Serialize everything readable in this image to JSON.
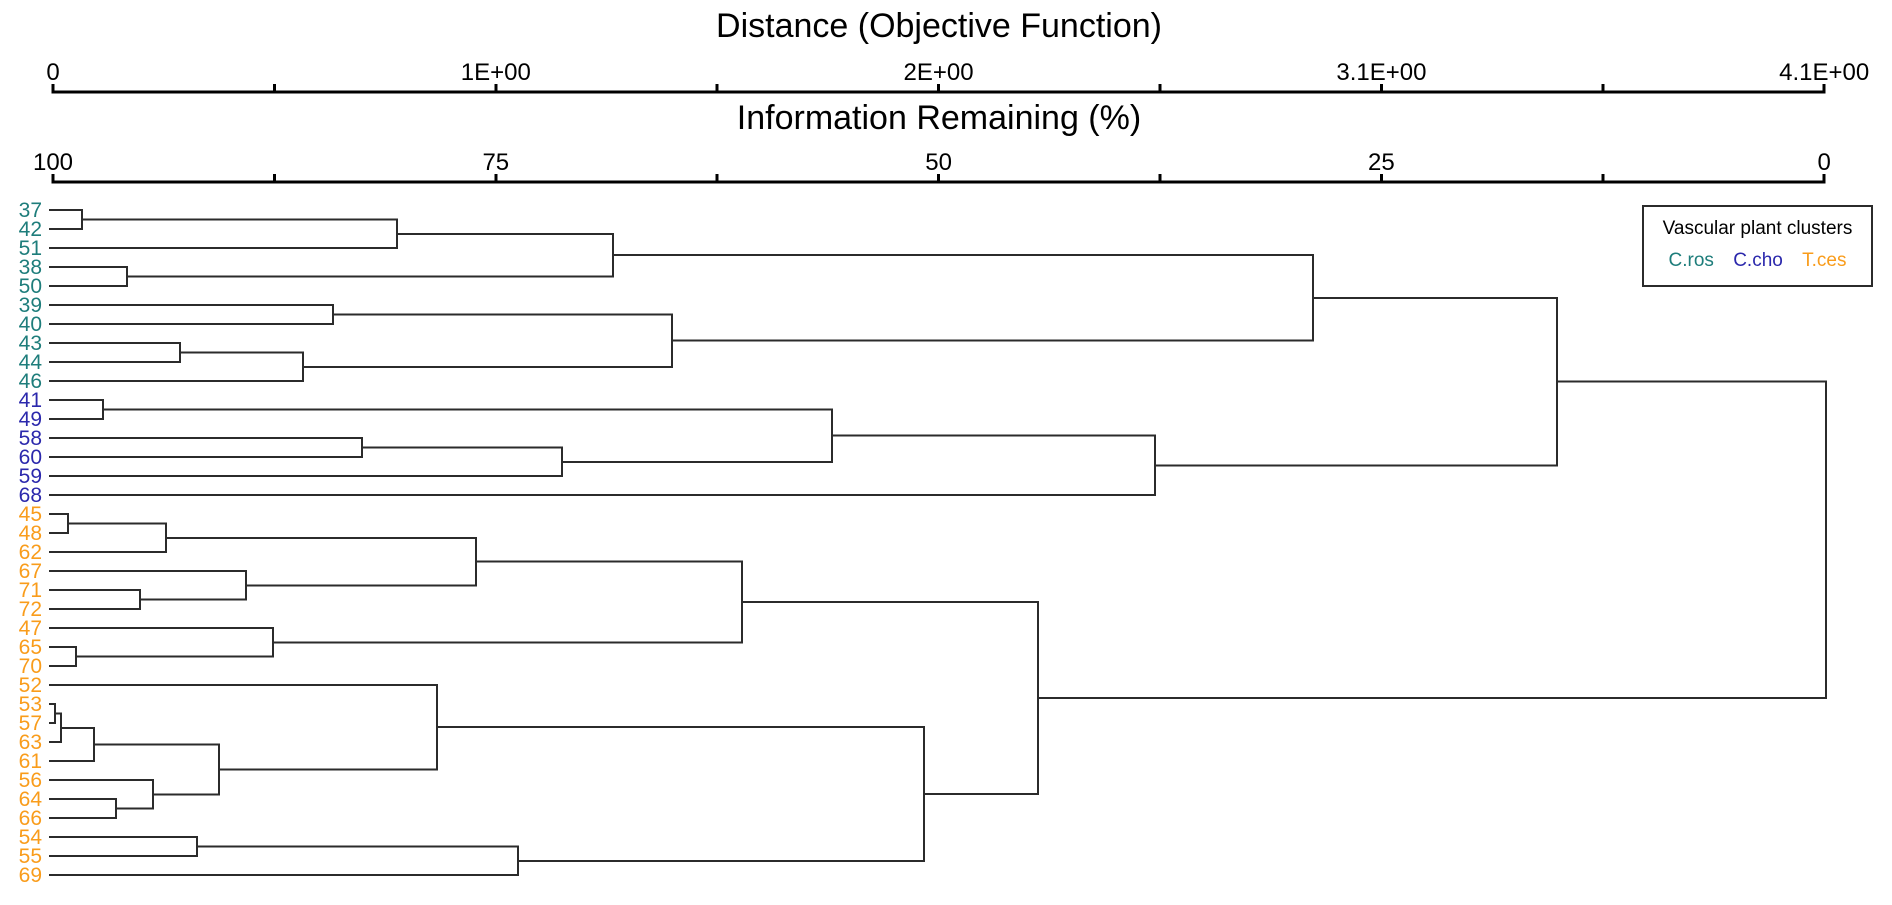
{
  "chart_data": {
    "type": "dendrogram",
    "orientation": "horizontal",
    "axes": [
      {
        "title": "Distance (Objective Function)",
        "tick_labels": [
          "0",
          "1E+00",
          "2E+00",
          "3.1E+00",
          "4.1E+00"
        ],
        "min": 0,
        "max": 4.1
      },
      {
        "title": "Information Remaining (%)",
        "tick_labels": [
          "100",
          "75",
          "50",
          "25",
          "0"
        ],
        "min": 100,
        "max": 0
      }
    ],
    "legend": {
      "title": "Vascular plant clusters",
      "entries": [
        {
          "label": "C.ros",
          "color": "#1E7D7B"
        },
        {
          "label": "C.cho",
          "color": "#2B28AC"
        },
        {
          "label": "T.ces",
          "color": "#F99C1B"
        }
      ]
    },
    "leaves": [
      {
        "id": "37",
        "group": "C.ros"
      },
      {
        "id": "42",
        "group": "C.ros"
      },
      {
        "id": "51",
        "group": "C.ros"
      },
      {
        "id": "38",
        "group": "C.ros"
      },
      {
        "id": "50",
        "group": "C.ros"
      },
      {
        "id": "39",
        "group": "C.ros"
      },
      {
        "id": "40",
        "group": "C.ros"
      },
      {
        "id": "43",
        "group": "C.ros"
      },
      {
        "id": "44",
        "group": "C.ros"
      },
      {
        "id": "46",
        "group": "C.ros"
      },
      {
        "id": "41",
        "group": "C.cho"
      },
      {
        "id": "49",
        "group": "C.cho"
      },
      {
        "id": "58",
        "group": "C.cho"
      },
      {
        "id": "60",
        "group": "C.cho"
      },
      {
        "id": "59",
        "group": "C.cho"
      },
      {
        "id": "68",
        "group": "C.cho"
      },
      {
        "id": "45",
        "group": "T.ces"
      },
      {
        "id": "48",
        "group": "T.ces"
      },
      {
        "id": "62",
        "group": "T.ces"
      },
      {
        "id": "67",
        "group": "T.ces"
      },
      {
        "id": "71",
        "group": "T.ces"
      },
      {
        "id": "72",
        "group": "T.ces"
      },
      {
        "id": "47",
        "group": "T.ces"
      },
      {
        "id": "65",
        "group": "T.ces"
      },
      {
        "id": "70",
        "group": "T.ces"
      },
      {
        "id": "52",
        "group": "T.ces"
      },
      {
        "id": "53",
        "group": "T.ces"
      },
      {
        "id": "57",
        "group": "T.ces"
      },
      {
        "id": "63",
        "group": "T.ces"
      },
      {
        "id": "61",
        "group": "T.ces"
      },
      {
        "id": "56",
        "group": "T.ces"
      },
      {
        "id": "64",
        "group": "T.ces"
      },
      {
        "id": "66",
        "group": "T.ces"
      },
      {
        "id": "54",
        "group": "T.ces"
      },
      {
        "id": "55",
        "group": "T.ces"
      },
      {
        "id": "69",
        "group": "T.ces"
      }
    ],
    "merges": [
      {
        "id": "n1",
        "children": [
          "37",
          "42"
        ],
        "distance": 0.067
      },
      {
        "id": "n2",
        "children": [
          "n1",
          "51"
        ],
        "distance": 0.796
      },
      {
        "id": "n3",
        "children": [
          "38",
          "50"
        ],
        "distance": 0.171
      },
      {
        "id": "n4",
        "children": [
          "n2",
          "n3"
        ],
        "distance": 1.296
      },
      {
        "id": "n5",
        "children": [
          "39",
          "40"
        ],
        "distance": 0.648
      },
      {
        "id": "n6",
        "children": [
          "43",
          "44"
        ],
        "distance": 0.294
      },
      {
        "id": "n7",
        "children": [
          "n6",
          "46"
        ],
        "distance": 0.579
      },
      {
        "id": "n8",
        "children": [
          "n5",
          "n7"
        ],
        "distance": 1.433
      },
      {
        "id": "n9",
        "children": [
          "n4",
          "n8"
        ],
        "distance": 2.917
      },
      {
        "id": "n10",
        "children": [
          "41",
          "49"
        ],
        "distance": 0.116
      },
      {
        "id": "n11",
        "children": [
          "58",
          "60"
        ],
        "distance": 0.715
      },
      {
        "id": "n12",
        "children": [
          "n11",
          "59"
        ],
        "distance": 1.178
      },
      {
        "id": "n13",
        "children": [
          "n10",
          "n12"
        ],
        "distance": 1.803
      },
      {
        "id": "n14",
        "children": [
          "n13",
          "68"
        ],
        "distance": 2.551
      },
      {
        "id": "n15",
        "children": [
          "n9",
          "n14"
        ],
        "distance": 3.481
      },
      {
        "id": "n16",
        "children": [
          "45",
          "48"
        ],
        "distance": 0.035
      },
      {
        "id": "n17",
        "children": [
          "n16",
          "62"
        ],
        "distance": 0.262
      },
      {
        "id": "n18",
        "children": [
          "71",
          "72"
        ],
        "distance": 0.201
      },
      {
        "id": "n19",
        "children": [
          "67",
          "n18"
        ],
        "distance": 0.447
      },
      {
        "id": "n20",
        "children": [
          "n17",
          "n19"
        ],
        "distance": 0.979
      },
      {
        "id": "n21",
        "children": [
          "65",
          "70"
        ],
        "distance": 0.053
      },
      {
        "id": "n22",
        "children": [
          "47",
          "n21"
        ],
        "distance": 0.509
      },
      {
        "id": "n23",
        "children": [
          "n20",
          "n22"
        ],
        "distance": 1.595
      },
      {
        "id": "n24",
        "children": [
          "53",
          "57"
        ],
        "distance": 0.005
      },
      {
        "id": "n25",
        "children": [
          "n24",
          "63"
        ],
        "distance": 0.019
      },
      {
        "id": "n26",
        "children": [
          "n25",
          "61"
        ],
        "distance": 0.095
      },
      {
        "id": "n27",
        "children": [
          "64",
          "66"
        ],
        "distance": 0.146
      },
      {
        "id": "n28",
        "children": [
          "56",
          "n27"
        ],
        "distance": 0.231
      },
      {
        "id": "n29",
        "children": [
          "n26",
          "n28"
        ],
        "distance": 0.384
      },
      {
        "id": "n30",
        "children": [
          "52",
          "n29"
        ],
        "distance": 0.889
      },
      {
        "id": "n31",
        "children": [
          "54",
          "55"
        ],
        "distance": 0.333
      },
      {
        "id": "n32",
        "children": [
          "n31",
          "69"
        ],
        "distance": 1.076
      },
      {
        "id": "n33",
        "children": [
          "n30",
          "n32"
        ],
        "distance": 2.016
      },
      {
        "id": "n34",
        "children": [
          "n23",
          "n33"
        ],
        "distance": 2.28
      },
      {
        "id": "n35",
        "children": [
          "n15",
          "n34"
        ],
        "distance": 4.104
      }
    ]
  },
  "style": {
    "line_color": "#2B2B2B",
    "text_color": "#000000",
    "background": "#FFFFFF"
  }
}
